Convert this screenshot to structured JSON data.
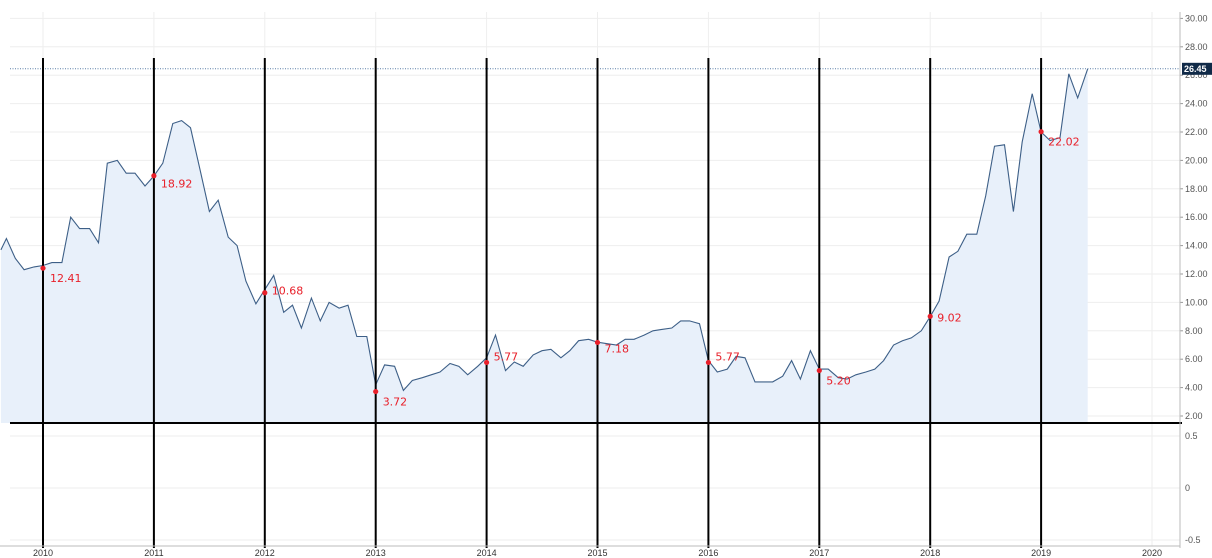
{
  "chart_data": {
    "type": "area",
    "title": "",
    "xlabel": "",
    "ylabel": "",
    "x_ticks": [
      "2010",
      "2011",
      "2012",
      "2013",
      "2014",
      "2015",
      "2016",
      "2017",
      "2018",
      "2019",
      "2020"
    ],
    "y_ticks": [
      "2.00",
      "4.00",
      "6.00",
      "8.00",
      "10.00",
      "12.00",
      "14.00",
      "16.00",
      "18.00",
      "20.00",
      "22.00",
      "24.00",
      "26.00",
      "28.00",
      "30.00"
    ],
    "lower_ticks": [
      "0.5",
      "0",
      "-0.5"
    ],
    "ylim": [
      0.6,
      30.4
    ],
    "xlim": [
      2009.62,
      2020.48
    ],
    "grid": true,
    "last_value": "26.45",
    "series": [
      {
        "points": [
          [
            2009.62,
            13.7
          ],
          [
            2009.67,
            14.5
          ],
          [
            2009.75,
            13.1
          ],
          [
            2009.83,
            12.3
          ],
          [
            2009.92,
            12.5
          ],
          [
            2010.0,
            12.6
          ],
          [
            2010.08,
            12.8
          ],
          [
            2010.17,
            12.8
          ],
          [
            2010.25,
            16.0
          ],
          [
            2010.33,
            15.2
          ],
          [
            2010.42,
            15.2
          ],
          [
            2010.5,
            14.2
          ],
          [
            2010.58,
            19.8
          ],
          [
            2010.67,
            20.0
          ],
          [
            2010.75,
            19.1
          ],
          [
            2010.83,
            19.1
          ],
          [
            2010.92,
            18.2
          ],
          [
            2011.0,
            18.9
          ],
          [
            2011.08,
            19.8
          ],
          [
            2011.17,
            22.6
          ],
          [
            2011.25,
            22.8
          ],
          [
            2011.33,
            22.3
          ],
          [
            2011.42,
            19.2
          ],
          [
            2011.5,
            16.4
          ],
          [
            2011.58,
            17.2
          ],
          [
            2011.67,
            14.6
          ],
          [
            2011.75,
            14.0
          ],
          [
            2011.83,
            11.5
          ],
          [
            2011.92,
            9.9
          ],
          [
            2012.0,
            10.9
          ],
          [
            2012.08,
            11.9
          ],
          [
            2012.17,
            9.3
          ],
          [
            2012.25,
            9.8
          ],
          [
            2012.33,
            8.2
          ],
          [
            2012.42,
            10.3
          ],
          [
            2012.5,
            8.7
          ],
          [
            2012.58,
            10.0
          ],
          [
            2012.67,
            9.6
          ],
          [
            2012.75,
            9.8
          ],
          [
            2012.83,
            7.6
          ],
          [
            2012.92,
            7.6
          ],
          [
            2013.0,
            4.2
          ],
          [
            2013.08,
            5.6
          ],
          [
            2013.17,
            5.5
          ],
          [
            2013.25,
            3.8
          ],
          [
            2013.33,
            4.5
          ],
          [
            2013.42,
            4.7
          ],
          [
            2013.5,
            4.9
          ],
          [
            2013.58,
            5.1
          ],
          [
            2013.67,
            5.7
          ],
          [
            2013.75,
            5.5
          ],
          [
            2013.83,
            4.9
          ],
          [
            2013.92,
            5.5
          ],
          [
            2014.0,
            6.1
          ],
          [
            2014.08,
            7.7
          ],
          [
            2014.17,
            5.2
          ],
          [
            2014.25,
            5.8
          ],
          [
            2014.33,
            5.5
          ],
          [
            2014.42,
            6.3
          ],
          [
            2014.5,
            6.6
          ],
          [
            2014.58,
            6.7
          ],
          [
            2014.67,
            6.1
          ],
          [
            2014.75,
            6.6
          ],
          [
            2014.83,
            7.3
          ],
          [
            2014.92,
            7.4
          ],
          [
            2015.0,
            7.2
          ],
          [
            2015.08,
            7.1
          ],
          [
            2015.17,
            7.0
          ],
          [
            2015.25,
            7.4
          ],
          [
            2015.33,
            7.4
          ],
          [
            2015.42,
            7.7
          ],
          [
            2015.5,
            8.0
          ],
          [
            2015.58,
            8.1
          ],
          [
            2015.67,
            8.2
          ],
          [
            2015.75,
            8.7
          ],
          [
            2015.83,
            8.7
          ],
          [
            2015.92,
            8.5
          ],
          [
            2016.0,
            5.9
          ],
          [
            2016.08,
            5.1
          ],
          [
            2016.17,
            5.3
          ],
          [
            2016.25,
            6.2
          ],
          [
            2016.33,
            6.1
          ],
          [
            2016.42,
            4.4
          ],
          [
            2016.5,
            4.4
          ],
          [
            2016.58,
            4.4
          ],
          [
            2016.67,
            4.8
          ],
          [
            2016.75,
            5.9
          ],
          [
            2016.83,
            4.6
          ],
          [
            2016.92,
            6.6
          ],
          [
            2017.0,
            5.3
          ],
          [
            2017.08,
            5.3
          ],
          [
            2017.17,
            4.7
          ],
          [
            2017.25,
            4.6
          ],
          [
            2017.33,
            4.9
          ],
          [
            2017.42,
            5.1
          ],
          [
            2017.5,
            5.3
          ],
          [
            2017.58,
            5.9
          ],
          [
            2017.67,
            7.0
          ],
          [
            2017.75,
            7.3
          ],
          [
            2017.83,
            7.5
          ],
          [
            2017.92,
            8.0
          ],
          [
            2018.0,
            9.0
          ],
          [
            2018.08,
            10.1
          ],
          [
            2018.17,
            13.2
          ],
          [
            2018.25,
            13.6
          ],
          [
            2018.33,
            14.8
          ],
          [
            2018.42,
            14.8
          ],
          [
            2018.5,
            17.5
          ],
          [
            2018.58,
            21.0
          ],
          [
            2018.67,
            21.1
          ],
          [
            2018.75,
            16.4
          ],
          [
            2018.83,
            21.3
          ],
          [
            2018.92,
            24.7
          ],
          [
            2019.0,
            22.0
          ],
          [
            2019.08,
            21.4
          ],
          [
            2019.17,
            21.6
          ],
          [
            2019.25,
            26.1
          ],
          [
            2019.33,
            24.4
          ],
          [
            2019.42,
            26.45
          ]
        ]
      }
    ],
    "annotations": [
      {
        "x": 2010.0,
        "y": 12.41,
        "label": "12.41"
      },
      {
        "x": 2011.0,
        "y": 18.92,
        "label": "18.92"
      },
      {
        "x": 2012.0,
        "y": 10.68,
        "label": "10.68"
      },
      {
        "x": 2013.0,
        "y": 3.72,
        "label": "3.72"
      },
      {
        "x": 2014.0,
        "y": 5.77,
        "label": "5.77"
      },
      {
        "x": 2015.0,
        "y": 7.18,
        "label": "7.18"
      },
      {
        "x": 2016.0,
        "y": 5.77,
        "label": "5.77"
      },
      {
        "x": 2017.0,
        "y": 5.2,
        "label": "5.20"
      },
      {
        "x": 2018.0,
        "y": 9.02,
        "label": "9.02"
      },
      {
        "x": 2019.0,
        "y": 22.02,
        "label": "22.02"
      }
    ],
    "colors": {
      "line": "#3d5f87",
      "fill": "#e8f0fa",
      "marker": "#e8202a",
      "last_badge": "#102a48",
      "reference_line": "#000000",
      "grid": "#eeeeee"
    }
  }
}
